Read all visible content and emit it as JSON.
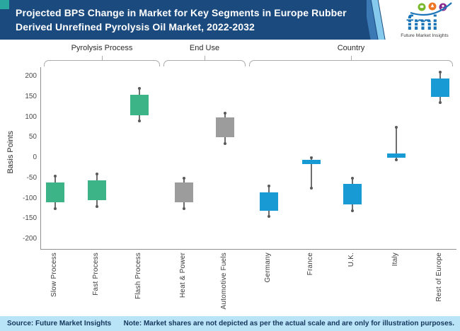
{
  "header": {
    "title_line1": "Projected BPS Change in Market for Key Segments in Europe Rubber",
    "title_line2": "Derived Unrefined Pyrolysis Oil Market, 2022-2032",
    "logo": {
      "text": "fmi",
      "tagline": "Future Market Insights"
    }
  },
  "footer": {
    "source": "Source: Future Market Insights",
    "note": "Note: Market shares are not depicted as per the actual scale and are only for illustration purposes."
  },
  "colors": {
    "header_bg": "#1b4a7e",
    "corner_accent": "#2aa79e",
    "footer_bg": "#b9e3f7",
    "footer_text": "#14365c",
    "pyrolysis_process": "#3cb487",
    "end_use": "#9c9c9c",
    "country": "#189bd5",
    "whisker": "#6e6e6e"
  },
  "chart_data": {
    "type": "candlestick",
    "ylabel": "Basis Points",
    "ylim": [
      -200,
      200
    ],
    "yticks": [
      200,
      150,
      100,
      50,
      0,
      -50,
      -100,
      -150,
      -200
    ],
    "grid": false,
    "groups": [
      {
        "label": "Pyrolysis Process",
        "color": "#3cb487",
        "segments": [
          "Slow Process",
          "Fast Process",
          "Flash Process"
        ]
      },
      {
        "label": "End Use",
        "color": "#9c9c9c",
        "segments": [
          "Heat & Power",
          "Automotive Fuels"
        ]
      },
      {
        "label": "Country",
        "color": "#189bd5",
        "segments": [
          "Germany",
          "France",
          "U.K.",
          "Italy",
          "Rest of Europe"
        ]
      }
    ],
    "segments": [
      {
        "label": "Slow Process",
        "group": "Pyrolysis Process",
        "high": -45,
        "box_top": -60,
        "box_bottom": -110,
        "low": -125
      },
      {
        "label": "Fast Process",
        "group": "Pyrolysis Process",
        "high": -40,
        "box_top": -55,
        "box_bottom": -105,
        "low": -120
      },
      {
        "label": "Flash Process",
        "group": "Pyrolysis Process",
        "high": 170,
        "box_top": 155,
        "box_bottom": 105,
        "low": 90
      },
      {
        "label": "Heat & Power",
        "group": "End Use",
        "high": -50,
        "box_top": -60,
        "box_bottom": -110,
        "low": -125
      },
      {
        "label": "Automotive Fuels",
        "group": "End Use",
        "high": 110,
        "box_top": 100,
        "box_bottom": 50,
        "low": 35
      },
      {
        "label": "Germany",
        "group": "Country",
        "high": -70,
        "box_top": -85,
        "box_bottom": -130,
        "low": -145
      },
      {
        "label": "France",
        "group": "Country",
        "high": 0,
        "box_top": -5,
        "box_bottom": -15,
        "low": -75
      },
      {
        "label": "U.K.",
        "group": "Country",
        "high": -50,
        "box_top": -65,
        "box_bottom": -115,
        "low": -130
      },
      {
        "label": "Italy",
        "group": "Country",
        "high": 75,
        "box_top": 10,
        "box_bottom": 0,
        "low": -5
      },
      {
        "label": "Rest of Europe",
        "group": "Country",
        "high": 210,
        "box_top": 195,
        "box_bottom": 150,
        "low": 135
      }
    ]
  }
}
